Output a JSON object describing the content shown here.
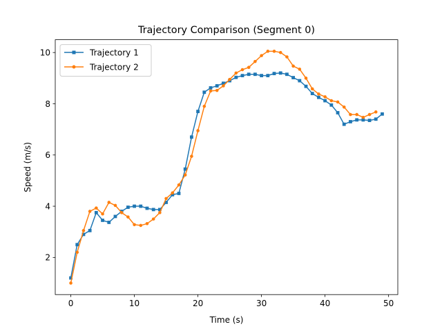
{
  "chart_data": {
    "type": "line",
    "title": "Trajectory Comparison (Segment 0)",
    "xlabel": "Time (s)",
    "ylabel": "Speed (m/s)",
    "xlim": [
      -2.45,
      51.45
    ],
    "ylim": [
      0.55,
      10.5
    ],
    "xticks": [
      0,
      10,
      20,
      30,
      40,
      50
    ],
    "yticks": [
      2,
      4,
      6,
      8,
      10
    ],
    "legend_position": "top-left",
    "grid": false,
    "series": [
      {
        "name": "Trajectory 1",
        "color": "#1f77b4",
        "marker": "square",
        "x": [
          0,
          1,
          2,
          3,
          4,
          5,
          6,
          7,
          8,
          9,
          10,
          11,
          12,
          13,
          14,
          15,
          16,
          17,
          18,
          19,
          20,
          21,
          22,
          23,
          24,
          25,
          26,
          27,
          28,
          29,
          30,
          31,
          32,
          33,
          34,
          35,
          36,
          37,
          38,
          39,
          40,
          41,
          42,
          43,
          44,
          45,
          46,
          47,
          48,
          49
        ],
        "y": [
          1.2,
          2.5,
          2.9,
          3.05,
          3.75,
          3.45,
          3.37,
          3.6,
          3.8,
          3.96,
          4.0,
          4.0,
          3.92,
          3.87,
          3.87,
          4.15,
          4.45,
          4.5,
          5.45,
          6.7,
          7.7,
          8.45,
          8.62,
          8.7,
          8.8,
          8.9,
          9.03,
          9.1,
          9.15,
          9.15,
          9.1,
          9.1,
          9.18,
          9.2,
          9.15,
          9.02,
          8.9,
          8.68,
          8.4,
          8.25,
          8.12,
          7.95,
          7.65,
          7.2,
          7.3,
          7.37,
          7.37,
          7.35,
          7.4,
          7.6
        ]
      },
      {
        "name": "Trajectory 2",
        "color": "#ff7f0e",
        "marker": "circle",
        "x": [
          0,
          1,
          2,
          3,
          4,
          5,
          6,
          7,
          8,
          9,
          10,
          11,
          12,
          13,
          14,
          15,
          16,
          17,
          18,
          19,
          20,
          21,
          22,
          23,
          24,
          25,
          26,
          27,
          28,
          29,
          30,
          31,
          32,
          33,
          34,
          35,
          36,
          37,
          38,
          39,
          40,
          41,
          42,
          43,
          44,
          45,
          46,
          47,
          48
        ],
        "y": [
          1.0,
          2.2,
          3.05,
          3.8,
          3.93,
          3.7,
          4.15,
          4.03,
          3.75,
          3.58,
          3.28,
          3.25,
          3.32,
          3.5,
          3.75,
          4.3,
          4.52,
          4.83,
          5.22,
          5.95,
          6.95,
          7.9,
          8.5,
          8.52,
          8.7,
          8.95,
          9.2,
          9.33,
          9.42,
          9.65,
          9.88,
          10.05,
          10.05,
          10.0,
          9.83,
          9.47,
          9.35,
          9.0,
          8.58,
          8.38,
          8.27,
          8.12,
          8.07,
          7.87,
          7.58,
          7.58,
          7.47,
          7.58,
          7.68
        ]
      }
    ]
  }
}
